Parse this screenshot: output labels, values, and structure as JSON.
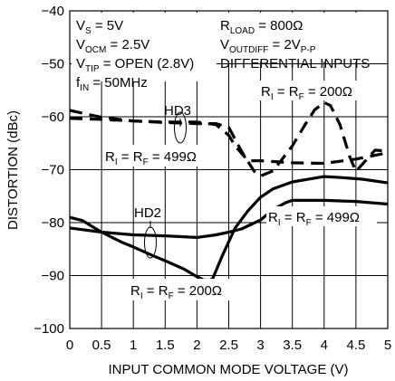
{
  "chart_data": {
    "type": "line",
    "xlabel": "INPUT COMMON MODE VOLTAGE (V)",
    "ylabel": "DISTORTION (dBc)",
    "xlim": [
      0,
      5
    ],
    "ylim": [
      -100,
      -40
    ],
    "x_ticks": [
      "0",
      "0.5",
      "1",
      "1.5",
      "2",
      "2.5",
      "3",
      "3.5",
      "4",
      "4.5",
      "5"
    ],
    "y_ticks": [
      "−40",
      "−50",
      "−60",
      "−70",
      "−80",
      "−90",
      "−100"
    ],
    "grid": true,
    "conditions": {
      "vs": {
        "main": "V",
        "sub": "S",
        "rest": " = 5V"
      },
      "vocm": {
        "main": "V",
        "sub": "OCM",
        "rest": " = 2.5V"
      },
      "vtip": {
        "main": "V",
        "sub": "TIP",
        "rest": " = OPEN (2.8V)"
      },
      "fin": {
        "main": "f",
        "sub": "IN",
        "rest": " = 50MHz"
      },
      "rload": {
        "main": "R",
        "sub": "LOAD",
        "rest": " = 800Ω"
      },
      "voutdiff": {
        "main": "V",
        "sub": "OUTDIFF",
        "rest": " = 2V",
        "sub2": "P-P"
      },
      "inputs": "DIFFERENTIAL INPUTS"
    },
    "annotations": {
      "hd3": "HD3",
      "hd2": "HD2",
      "r_label_a": {
        "r1": "R",
        "s1": "I",
        "mid": " = R",
        "s2": "F",
        "val": " = 200Ω"
      },
      "r_label_b": {
        "r1": "R",
        "s1": "I",
        "mid": " = R",
        "s2": "F",
        "val": " = 499Ω"
      },
      "r_label_c": {
        "r1": "R",
        "s1": "I",
        "mid": " = R",
        "s2": "F",
        "val": " = 499Ω"
      },
      "r_label_d": {
        "r1": "R",
        "s1": "I",
        "mid": " = R",
        "s2": "F",
        "val": " = 200Ω"
      }
    },
    "series": [
      {
        "group": "HD3",
        "resistor": "200",
        "style": "dashed",
        "x": [
          0,
          0.5,
          1,
          1.5,
          2,
          2.3,
          2.5,
          2.7,
          2.9,
          3.0,
          3.2,
          3.5,
          3.7,
          3.85,
          4.0,
          4.1,
          4.25,
          4.4,
          4.5,
          4.6,
          4.8,
          5.0
        ],
        "y": [
          -60.3,
          -60.5,
          -60.8,
          -61.1,
          -61.3,
          -61.3,
          -62.0,
          -66.5,
          -70.3,
          -71.2,
          -70.2,
          -65.5,
          -61.5,
          -58.7,
          -57.3,
          -57.9,
          -61.5,
          -67.5,
          -70.3,
          -69.0,
          -66.3,
          -66.5
        ]
      },
      {
        "group": "HD3",
        "resistor": "499",
        "style": "dashed",
        "x": [
          0,
          0.5,
          1,
          1.5,
          2,
          2.3,
          2.5,
          2.6,
          2.8,
          3.0,
          3.5,
          4.0,
          4.5,
          5.0
        ],
        "y": [
          -58.8,
          -60.1,
          -60.8,
          -61.0,
          -61.0,
          -61.5,
          -63.5,
          -65.5,
          -68.3,
          -68.3,
          -68.7,
          -68.8,
          -68.0,
          -66.8
        ]
      },
      {
        "group": "HD2",
        "resistor": "200",
        "style": "solid",
        "x": [
          0,
          0.2,
          0.5,
          0.8,
          1.0,
          1.3,
          1.5,
          1.8,
          2.0,
          2.1,
          2.2,
          2.25,
          2.4,
          2.6,
          2.8,
          3.0,
          3.2,
          3.5,
          3.8,
          4.0,
          4.3,
          4.6,
          5.0
        ],
        "y": [
          -79.0,
          -79.6,
          -81.8,
          -83.6,
          -84.6,
          -86.2,
          -87.2,
          -88.8,
          -90.2,
          -90.8,
          -90.9,
          -90.5,
          -86.2,
          -81.0,
          -77.8,
          -75.2,
          -73.6,
          -72.3,
          -71.7,
          -71.3,
          -71.5,
          -71.8,
          -72.5
        ]
      },
      {
        "group": "HD2",
        "resistor": "499",
        "style": "solid",
        "x": [
          0,
          0.5,
          1,
          1.5,
          2,
          2.3,
          2.5,
          2.7,
          3.0,
          3.2,
          3.4,
          3.5,
          4.0,
          4.5,
          5.0
        ],
        "y": [
          -81.0,
          -81.8,
          -82.3,
          -82.5,
          -82.8,
          -82.3,
          -81.8,
          -81.2,
          -79.5,
          -77.5,
          -76.2,
          -75.8,
          -75.8,
          -76.0,
          -76.5
        ]
      }
    ]
  }
}
